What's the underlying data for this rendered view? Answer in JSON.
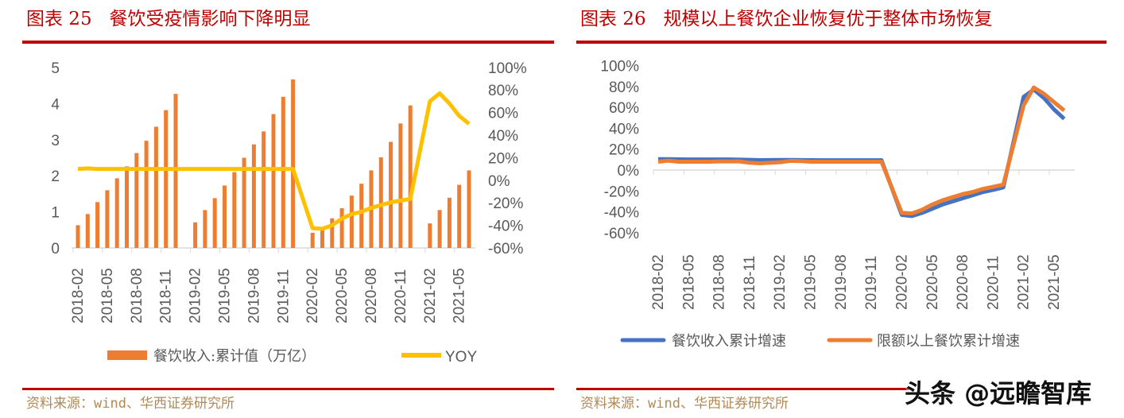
{
  "left": {
    "title": "图表 25   餐饮受疫情影响下降明显",
    "source": "资料来源：wind、华西证券研究所"
  },
  "right": {
    "title": "图表 26   规模以上餐饮企业恢复优于整体市场恢复",
    "source": "资料来源：wind、华西证券研究所"
  },
  "watermark": "头条 @远瞻智库",
  "chart_data": [
    {
      "type": "bar+line",
      "x": [
        "2018-02",
        "2018-03",
        "2018-04",
        "2018-05",
        "2018-06",
        "2018-07",
        "2018-08",
        "2018-09",
        "2018-10",
        "2018-11",
        "2018-12",
        "2019-02",
        "2019-03",
        "2019-04",
        "2019-05",
        "2019-06",
        "2019-07",
        "2019-08",
        "2019-09",
        "2019-10",
        "2019-11",
        "2019-12",
        "2020-02",
        "2020-03",
        "2020-04",
        "2020-05",
        "2020-06",
        "2020-07",
        "2020-08",
        "2020-09",
        "2020-10",
        "2020-11",
        "2020-12",
        "2021-02",
        "2021-03",
        "2021-04",
        "2021-05",
        "2021-06"
      ],
      "xticks": [
        "2018-02",
        "2018-05",
        "2018-08",
        "2018-11",
        "2019-02",
        "2019-05",
        "2019-08",
        "2019-11",
        "2020-02",
        "2020-05",
        "2020-08",
        "2020-11",
        "2021-02",
        "2021-05"
      ],
      "yleft": {
        "ticks": [
          "0",
          "1",
          "2",
          "3",
          "4",
          "5"
        ],
        "range": [
          0,
          5
        ]
      },
      "yright": {
        "ticks": [
          "-60%",
          "-40%",
          "-20%",
          "0%",
          "20%",
          "40%",
          "60%",
          "80%",
          "100%"
        ],
        "range": [
          -60,
          100
        ]
      },
      "series": [
        {
          "name": "餐饮收入:累计值（万亿）",
          "kind": "bar",
          "axis": "left",
          "color": "#ED7D31",
          "values": [
            0.63,
            0.94,
            1.27,
            1.6,
            1.93,
            2.26,
            2.63,
            2.97,
            3.36,
            3.82,
            4.27,
            0.71,
            1.05,
            1.38,
            1.73,
            2.1,
            2.5,
            2.87,
            3.23,
            3.71,
            4.19,
            4.67,
            0.42,
            0.55,
            0.82,
            1.1,
            1.45,
            1.78,
            2.15,
            2.51,
            2.94,
            3.45,
            3.95,
            0.68,
            1.05,
            1.39,
            1.75,
            2.15
          ]
        },
        {
          "name": "YOY",
          "kind": "line",
          "axis": "right",
          "color": "#FFC000",
          "values": [
            10,
            10.5,
            10,
            10,
            10,
            10,
            10,
            10,
            10,
            10,
            10,
            10,
            10,
            10,
            10,
            10,
            10,
            10,
            10,
            10,
            10,
            10,
            -42.5,
            -43,
            -40,
            -34,
            -30,
            -28,
            -24.5,
            -22,
            -19.6,
            -18,
            -16.6,
            70,
            77,
            68,
            57,
            50
          ]
        }
      ]
    },
    {
      "type": "line",
      "x": [
        "2018-02",
        "2018-03",
        "2018-04",
        "2018-05",
        "2018-06",
        "2018-07",
        "2018-08",
        "2018-09",
        "2018-10",
        "2018-11",
        "2018-12",
        "2019-02",
        "2019-03",
        "2019-04",
        "2019-05",
        "2019-06",
        "2019-07",
        "2019-08",
        "2019-09",
        "2019-10",
        "2019-11",
        "2019-12",
        "2020-02",
        "2020-03",
        "2020-04",
        "2020-05",
        "2020-06",
        "2020-07",
        "2020-08",
        "2020-09",
        "2020-10",
        "2020-11",
        "2020-12",
        "2021-02",
        "2021-03",
        "2021-04",
        "2021-05",
        "2021-06"
      ],
      "xticks": [
        "2018-02",
        "2018-05",
        "2018-08",
        "2018-11",
        "2019-02",
        "2019-05",
        "2019-08",
        "2019-11",
        "2020-02",
        "2020-05",
        "2020-08",
        "2020-11",
        "2021-02",
        "2021-05"
      ],
      "y": {
        "ticks": [
          "-60%",
          "-40%",
          "-20%",
          "0%",
          "20%",
          "40%",
          "60%",
          "80%",
          "100%"
        ],
        "range": [
          -60,
          100
        ]
      },
      "legend": "bottom",
      "series": [
        {
          "name": "餐饮收入累计增速",
          "color": "#4472C4",
          "values": [
            10.5,
            10.5,
            10.3,
            10.2,
            10.2,
            10.2,
            10.2,
            10.2,
            10.0,
            9.8,
            9.5,
            9.7,
            9.7,
            9.6,
            9.5,
            9.4,
            9.4,
            9.4,
            9.4,
            9.4,
            9.4,
            9.4,
            -43,
            -44,
            -41,
            -37,
            -33,
            -30,
            -27,
            -24,
            -21,
            -19,
            -16.6,
            70,
            77,
            69,
            58,
            49
          ]
        },
        {
          "name": "限额以上餐饮累计增速",
          "color": "#ED7D31",
          "values": [
            8,
            9,
            8,
            8,
            8,
            8,
            8.3,
            8.3,
            8.3,
            7,
            6.5,
            7.5,
            8.8,
            8.6,
            8,
            8,
            8,
            8,
            8,
            8,
            8,
            8,
            -41,
            -41.5,
            -38,
            -33,
            -29,
            -26,
            -23,
            -21,
            -18,
            -16,
            -14,
            62,
            79,
            73,
            65,
            57
          ]
        }
      ]
    }
  ]
}
